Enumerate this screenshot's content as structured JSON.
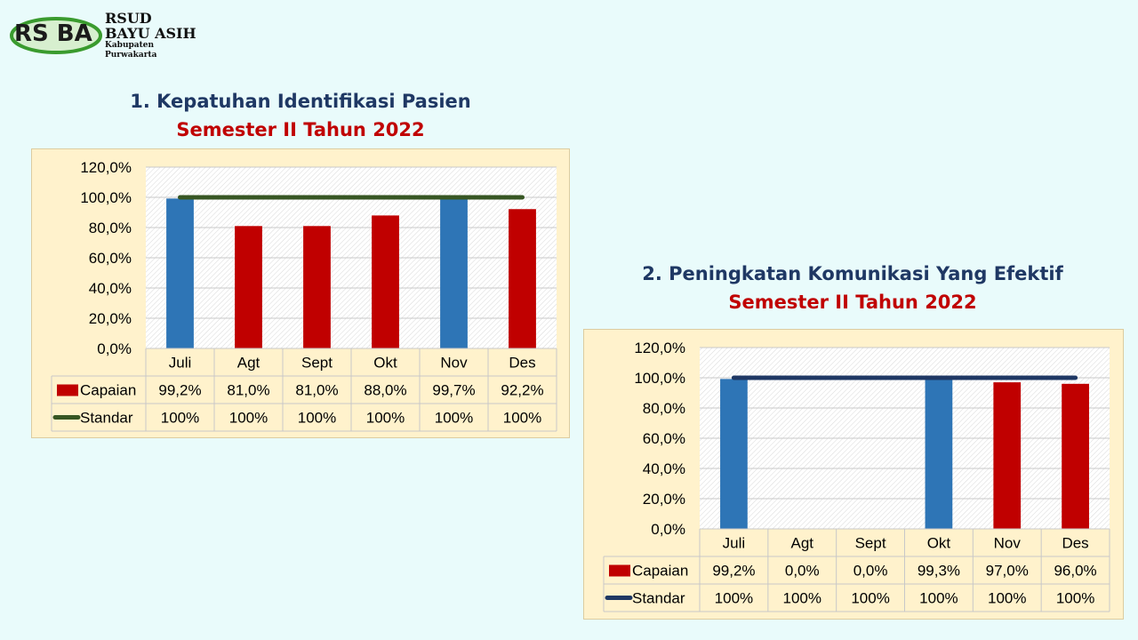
{
  "logo": {
    "name": "RSUD",
    "name2": "BAYU ASIH",
    "region": "Kabupaten Purwakarta",
    "mark": "RS BA"
  },
  "colors": {
    "background": "#e9fbfb",
    "panel": "#fff2cc",
    "capaian_blue": "#2e75b6",
    "capaian_red": "#c00000",
    "standar_chart1": "#375623",
    "standar_chart2": "#1f3864",
    "title_blue": "#1f3864",
    "title_red": "#c00000"
  },
  "chart_data": [
    {
      "type": "bar",
      "title": "1. Kepatuhan Identifikasi Pasien",
      "subtitle": "Semester II Tahun 2022",
      "categories": [
        "Juli",
        "Agt",
        "Sept",
        "Okt",
        "Nov",
        "Des"
      ],
      "series": [
        {
          "name": "Capaian",
          "values": [
            99.2,
            81.0,
            81.0,
            88.0,
            99.7,
            92.2
          ],
          "labels": [
            "99,2%",
            "81,0%",
            "81,0%",
            "88,0%",
            "99,7%",
            "92,2%"
          ],
          "bar_colors": [
            "#2e75b6",
            "#c00000",
            "#c00000",
            "#c00000",
            "#2e75b6",
            "#c00000"
          ]
        },
        {
          "name": "Standar",
          "type": "line",
          "values": [
            100,
            100,
            100,
            100,
            100,
            100
          ],
          "labels": [
            "100%",
            "100%",
            "100%",
            "100%",
            "100%",
            "100%"
          ],
          "color": "#375623"
        }
      ],
      "yticks": [
        "0,0%",
        "20,0%",
        "40,0%",
        "60,0%",
        "80,0%",
        "100,0%",
        "120,0%"
      ],
      "ylim": [
        0,
        120
      ],
      "data_table": true
    },
    {
      "type": "bar",
      "title": "2. Peningkatan Komunikasi Yang Efektif",
      "subtitle": "Semester II Tahun 2022",
      "categories": [
        "Juli",
        "Agt",
        "Sept",
        "Okt",
        "Nov",
        "Des"
      ],
      "series": [
        {
          "name": "Capaian",
          "values": [
            99.2,
            0.0,
            0.0,
            99.3,
            97.0,
            96.0
          ],
          "labels": [
            "99,2%",
            "0,0%",
            "0,0%",
            "99,3%",
            "97,0%",
            "96,0%"
          ],
          "bar_colors": [
            "#2e75b6",
            "#c00000",
            "#c00000",
            "#2e75b6",
            "#c00000",
            "#c00000"
          ]
        },
        {
          "name": "Standar",
          "type": "line",
          "values": [
            100,
            100,
            100,
            100,
            100,
            100
          ],
          "labels": [
            "100%",
            "100%",
            "100%",
            "100%",
            "100%",
            "100%"
          ],
          "color": "#1f3864"
        }
      ],
      "yticks": [
        "0,0%",
        "20,0%",
        "40,0%",
        "60,0%",
        "80,0%",
        "100,0%",
        "120,0%"
      ],
      "ylim": [
        0,
        120
      ],
      "data_table": true
    }
  ]
}
